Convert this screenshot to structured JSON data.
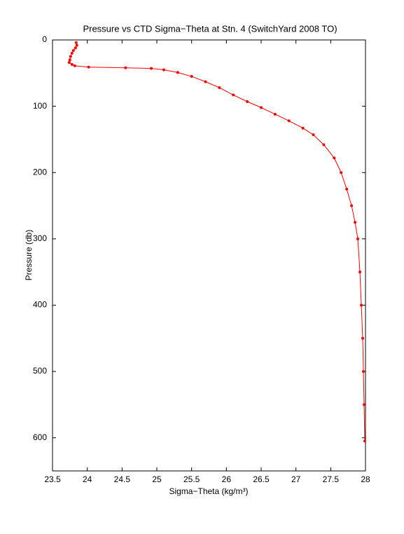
{
  "chart_data": {
    "type": "line",
    "title": "Pressure vs CTD Sigma−Theta at Stn. 4 (SwitchYard 2008 TO)",
    "xlabel": "Sigma−Theta (kg/m³)",
    "ylabel": "Pressure (db)",
    "x": [
      23.84,
      23.85,
      23.83,
      23.8,
      23.78,
      23.76,
      23.75,
      23.74,
      23.78,
      23.82,
      24.02,
      24.55,
      24.92,
      25.1,
      25.3,
      25.5,
      25.7,
      25.9,
      26.1,
      26.3,
      26.5,
      26.7,
      26.9,
      27.1,
      27.25,
      27.4,
      27.55,
      27.65,
      27.73,
      27.8,
      27.85,
      27.89,
      27.92,
      27.94,
      27.96,
      27.97,
      27.98,
      27.99
    ],
    "values": [
      4,
      8,
      12,
      16,
      20,
      25,
      30,
      34,
      37,
      39,
      41,
      42,
      43,
      45,
      49,
      55,
      63,
      72,
      83,
      93,
      102,
      112,
      122,
      133,
      143,
      158,
      178,
      200,
      225,
      250,
      275,
      300,
      350,
      400,
      450,
      500,
      550,
      605
    ],
    "color": "#ff0000",
    "xlim": [
      23.5,
      28
    ],
    "xticks": [
      23.5,
      24,
      24.5,
      25,
      25.5,
      26,
      26.5,
      27,
      27.5,
      28
    ],
    "ylim": [
      0,
      650
    ],
    "yticks": [
      0,
      100,
      200,
      300,
      400,
      500,
      600
    ],
    "y_reversed": true,
    "grid": false
  }
}
